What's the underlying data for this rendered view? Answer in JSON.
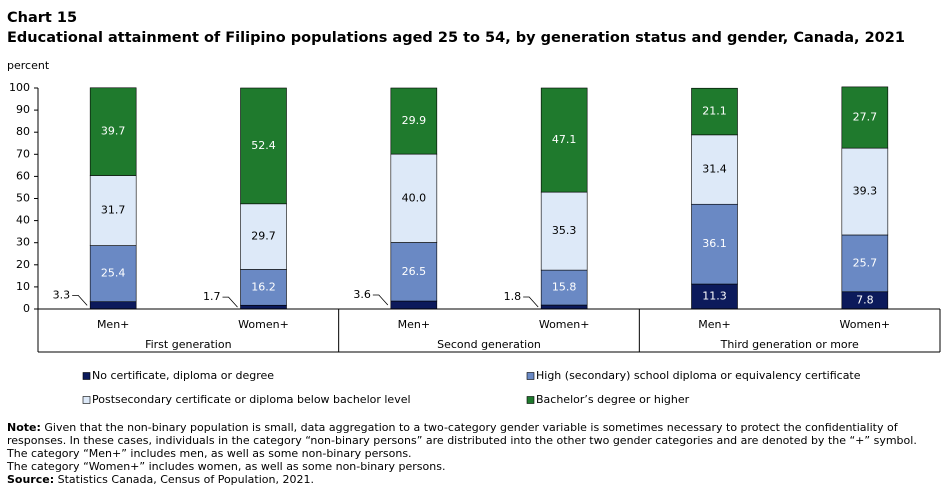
{
  "chart_data": {
    "type": "stacked-bar",
    "title": "Chart 15",
    "subtitle": "Educational attainment of Filipino  populations aged 25 to 54, by generation status and gender, Canada, 2021",
    "y_label": "percent",
    "categories": [
      "Men+",
      "Women+",
      "Men+",
      "Women+",
      "Men+",
      "Women+"
    ],
    "group_labels": [
      "First generation",
      "Second generation",
      "Third generation or more"
    ],
    "ylim": [
      0,
      100
    ],
    "yticks": [
      0,
      10,
      20,
      30,
      40,
      50,
      60,
      70,
      80,
      90,
      100
    ],
    "series": [
      {
        "name": "No certificate, diploma or degree",
        "color": "#0c1a5b",
        "label_color": "#ffffff",
        "values": [
          3.3,
          1.7,
          3.6,
          1.8,
          11.3,
          7.8
        ],
        "value_labels": [
          "3.3",
          "1.7",
          "3.6",
          "1.8",
          "11.3",
          "7.8"
        ]
      },
      {
        "name": "High (secondary) school diploma or equivalency certificate",
        "color": "#6a89c4",
        "label_color": "#ffffff",
        "values": [
          25.4,
          16.2,
          26.5,
          15.8,
          36.1,
          25.7
        ],
        "value_labels": [
          "25.4",
          "16.2",
          "26.5",
          "15.8",
          "36.1",
          "25.7"
        ]
      },
      {
        "name": "Postsecondary certificate or diploma below bachelor level",
        "color": "#dde9f8",
        "label_color": "#000000",
        "values": [
          31.7,
          29.7,
          40.0,
          35.3,
          31.4,
          39.3
        ],
        "value_labels": [
          "31.7",
          "29.7",
          "40.0",
          "35.3",
          "31.4",
          "39.3"
        ]
      },
      {
        "name": "Bachelor’s degree or higher",
        "color": "#1f7a2d",
        "label_color": "#ffffff",
        "values": [
          39.7,
          52.4,
          29.9,
          47.1,
          21.1,
          27.7
        ],
        "value_labels": [
          "39.7",
          "52.4",
          "29.9",
          "47.1",
          "21.1",
          "27.7"
        ]
      }
    ],
    "note_label": "Note:",
    "note": "Given that the non-binary population is small, data aggregation to a two-category gender variable is sometimes necessary to protect the confidentiality of responses. In these cases, individuals in the category “non-binary persons” are distributed into the other two gender categories and are denoted by the  “+” symbol.",
    "notes": [
      "The category “Men+” includes men, as well as some non-binary persons.",
      "The category “Women+” includes women, as well as some non-binary persons."
    ],
    "source_label": "Source:",
    "source": "Statistics Canada, Census of Population, 2021."
  }
}
